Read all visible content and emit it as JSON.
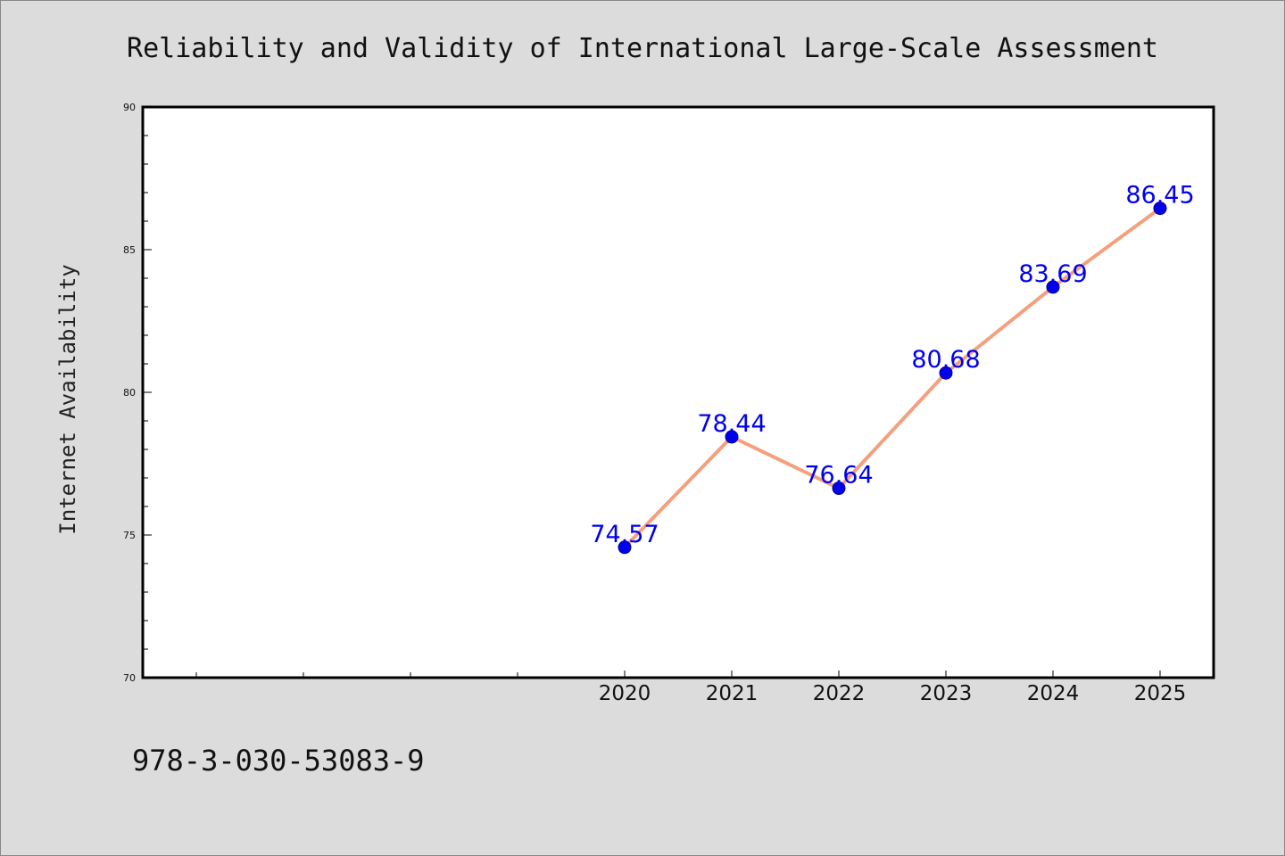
{
  "chart_data": {
    "type": "line",
    "title": "Reliability and Validity of International Large-Scale Assessment",
    "xlabel": "",
    "ylabel": "Internet Availability",
    "categories": [
      "2020",
      "2021",
      "2022",
      "2023",
      "2024",
      "2025"
    ],
    "series": [
      {
        "values": [
          74.57,
          78.44,
          76.64,
          80.68,
          83.69,
          86.45
        ],
        "data_labels": [
          "74.57",
          "78.44",
          "76.64",
          "80.68",
          "83.69",
          "86.45"
        ]
      }
    ],
    "ylim": [
      70,
      90
    ],
    "y_ticks": [
      "70",
      "75",
      "80",
      "85",
      "90"
    ],
    "grid": false,
    "legend": "none",
    "colors": {
      "line": "#f4a07e",
      "marker": "#0000ee",
      "marker_edge": "#00008b",
      "data_label": "#0000ee",
      "plot_background": "#ffffff",
      "page_background": "#dcdcdc"
    }
  },
  "footer": {
    "code": "978-3-030-53083-9"
  }
}
